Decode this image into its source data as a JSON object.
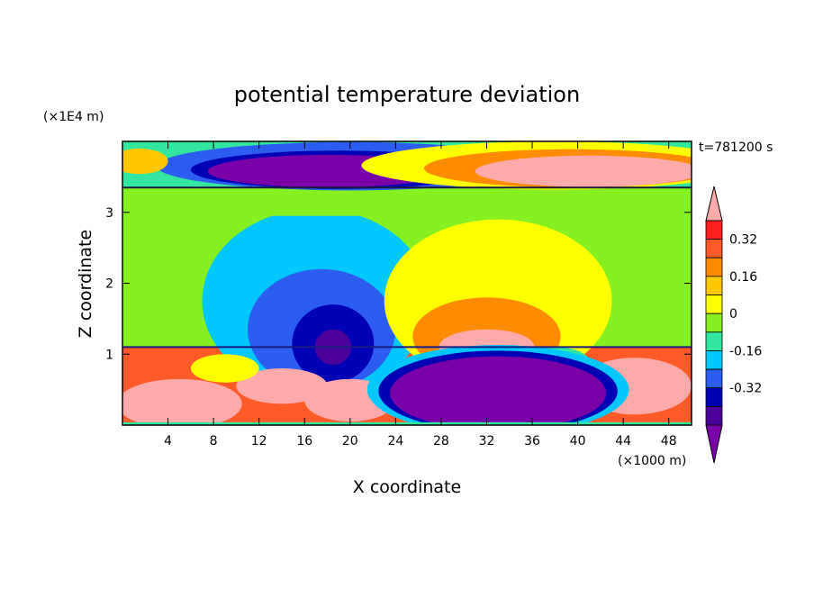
{
  "chart_data": {
    "type": "heatmap",
    "title": "potential temperature deviation",
    "xlabel": "X coordinate",
    "ylabel": "Z coordinate",
    "x_unit": "(×1000 m)",
    "y_unit": "(×1E4 m)",
    "time_label": "t=781200 s",
    "xlim": [
      0,
      50
    ],
    "ylim": [
      0,
      4
    ],
    "x_ticks": [
      4,
      8,
      12,
      16,
      20,
      24,
      28,
      32,
      36,
      40,
      44,
      48
    ],
    "y_ticks": [
      1,
      2,
      3
    ],
    "colorbar": {
      "colors": [
        "#7a00a8",
        "#4b0099",
        "#0000b4",
        "#2d5cf0",
        "#00c8ff",
        "#33e6a0",
        "#87f020",
        "#ffff00",
        "#ffc800",
        "#ff8c00",
        "#ff5a28",
        "#ff2020",
        "#ffaaaa"
      ],
      "level_labels": [
        "-0.32",
        "-0.16",
        "0",
        "0.16",
        "0.32"
      ],
      "extend": "both"
    },
    "features": [
      {
        "x": 18,
        "z": 3.65,
        "value": -0.5
      },
      {
        "x": 41,
        "z": 3.62,
        "value": 0.5
      },
      {
        "x": 2,
        "z": 3.72,
        "value": 0.25
      },
      {
        "x": 30,
        "z": 3.8,
        "value": 0.2
      },
      {
        "x": 18,
        "z": 1.3,
        "value": -0.42
      },
      {
        "x": 17,
        "z": 2.3,
        "value": -0.15
      },
      {
        "x": 32,
        "z": 1.3,
        "value": 0.42
      },
      {
        "x": 33,
        "z": 2.4,
        "value": 0.15
      },
      {
        "x": 33,
        "z": 0.45,
        "value": -0.5
      },
      {
        "x": 6,
        "z": 0.45,
        "value": 0.4
      },
      {
        "x": 45,
        "z": 0.5,
        "value": 0.4
      }
    ]
  }
}
